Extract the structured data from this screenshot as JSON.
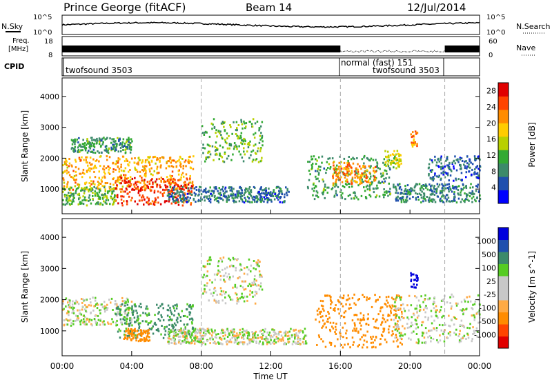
{
  "header": {
    "station": "Prince George (fitACF)",
    "beam": "Beam 14",
    "date": "12/Jul/2014"
  },
  "noise_panel": {
    "left_label": "N.Sky",
    "right_label": "N.Search",
    "left_ticks": [
      "10^5",
      "10^0"
    ],
    "right_ticks": [
      "10^5",
      "10^0"
    ]
  },
  "freq_panel": {
    "left_label_1": "Freq.",
    "left_label_2": "[MHz]",
    "right_label": "Nave",
    "left_ticks": [
      "18",
      "8"
    ],
    "right_ticks": [
      "60",
      "0"
    ]
  },
  "cpid_panel": {
    "label": "CPID",
    "segments": [
      {
        "start": "00:00",
        "end": "16:00",
        "name": "twofsound 3503"
      },
      {
        "start": "16:00",
        "end": "22:00",
        "name": "normal (fast) 151"
      },
      {
        "start": "16:00",
        "end": "22:00",
        "name": "twofsound 3503"
      }
    ]
  },
  "colors": {
    "power_scale": [
      "#0000ff",
      "#1f4fae",
      "#3c8a6a",
      "#33aa33",
      "#b8d000",
      "#ffcc00",
      "#ff8c00",
      "#ff4400",
      "#e00000"
    ],
    "velocity_scale": [
      "#e00000",
      "#ff4500",
      "#ff8c00",
      "#ffaa44",
      "#c8c8c8",
      "#c8c8c8",
      "#55cc22",
      "#3c8a6a",
      "#1f4fae",
      "#0000dd"
    ]
  },
  "chart_data": [
    {
      "type": "heatmap",
      "title": "Power",
      "xlabel": "",
      "ylabel": "Slant Range [km]",
      "x_ticks": [
        "00:00",
        "04:00",
        "08:00",
        "12:00",
        "16:00",
        "20:00",
        "00:00"
      ],
      "y_ticks": [
        1000,
        2000,
        3000,
        4000
      ],
      "ylim": [
        200,
        4600
      ],
      "colorbar_label": "Power [dB]",
      "colorbar_ticks": [
        "4",
        "8",
        "12",
        "16",
        "20",
        "24",
        "28"
      ],
      "colorbar_range": [
        0,
        30
      ],
      "dashed_markers_hours": [
        8,
        16,
        22
      ],
      "regions": [
        {
          "t": [
            0.0,
            7.5
          ],
          "r": [
            1000,
            2100
          ],
          "value": 20
        },
        {
          "t": [
            3.0,
            7.5
          ],
          "r": [
            500,
            1400
          ],
          "value": 26
        },
        {
          "t": [
            0.0,
            3.0
          ],
          "r": [
            500,
            1100
          ],
          "value": 12
        },
        {
          "t": [
            0.5,
            4.0
          ],
          "r": [
            2200,
            2700
          ],
          "value": 10
        },
        {
          "t": [
            8.0,
            11.5
          ],
          "r": [
            1900,
            3300
          ],
          "value": 12
        },
        {
          "t": [
            6.0,
            13.0
          ],
          "r": [
            600,
            1100
          ],
          "value": 7
        },
        {
          "t": [
            14.0,
            19.0
          ],
          "r": [
            700,
            2100
          ],
          "value": 10
        },
        {
          "t": [
            15.5,
            18.0
          ],
          "r": [
            1200,
            1900
          ],
          "value": 22
        },
        {
          "t": [
            18.5,
            19.5
          ],
          "r": [
            1700,
            2300
          ],
          "value": 16
        },
        {
          "t": [
            20.0,
            20.4
          ],
          "r": [
            2400,
            2900
          ],
          "value": 22
        },
        {
          "t": [
            19.0,
            24.0
          ],
          "r": [
            600,
            1200
          ],
          "value": 8
        },
        {
          "t": [
            21.0,
            24.0
          ],
          "r": [
            1300,
            2100
          ],
          "value": 6
        }
      ]
    },
    {
      "type": "heatmap",
      "title": "Velocity",
      "xlabel": "Time UT",
      "ylabel": "Slant Range [km]",
      "x_ticks": [
        "00:00",
        "04:00",
        "08:00",
        "12:00",
        "16:00",
        "20:00",
        "00:00"
      ],
      "y_ticks": [
        1000,
        2000,
        3000,
        4000
      ],
      "ylim": [
        200,
        4600
      ],
      "colorbar_label": "Velocity [m s^-1]",
      "colorbar_ticks": [
        "1000",
        "500",
        "100",
        "25",
        "-25",
        "-100",
        "-500",
        "-1000"
      ],
      "dashed_markers_hours": [
        8,
        16,
        22
      ],
      "regions": [
        {
          "t": [
            0.0,
            4.0
          ],
          "r": [
            1200,
            2100
          ],
          "value": 0
        },
        {
          "t": [
            3.0,
            7.5
          ],
          "r": [
            800,
            1900
          ],
          "value": 150
        },
        {
          "t": [
            3.5,
            5.0
          ],
          "r": [
            700,
            1100
          ],
          "value": -200
        },
        {
          "t": [
            8.0,
            11.5
          ],
          "r": [
            1900,
            3400
          ],
          "value": 0
        },
        {
          "t": [
            6.0,
            14.0
          ],
          "r": [
            600,
            1100
          ],
          "value": 0
        },
        {
          "t": [
            14.5,
            19.5
          ],
          "r": [
            500,
            2200
          ],
          "value": -300
        },
        {
          "t": [
            20.0,
            20.4
          ],
          "r": [
            2400,
            2900
          ],
          "value": 800
        },
        {
          "t": [
            19.0,
            24.0
          ],
          "r": [
            600,
            2200
          ],
          "value": 0
        }
      ]
    }
  ]
}
